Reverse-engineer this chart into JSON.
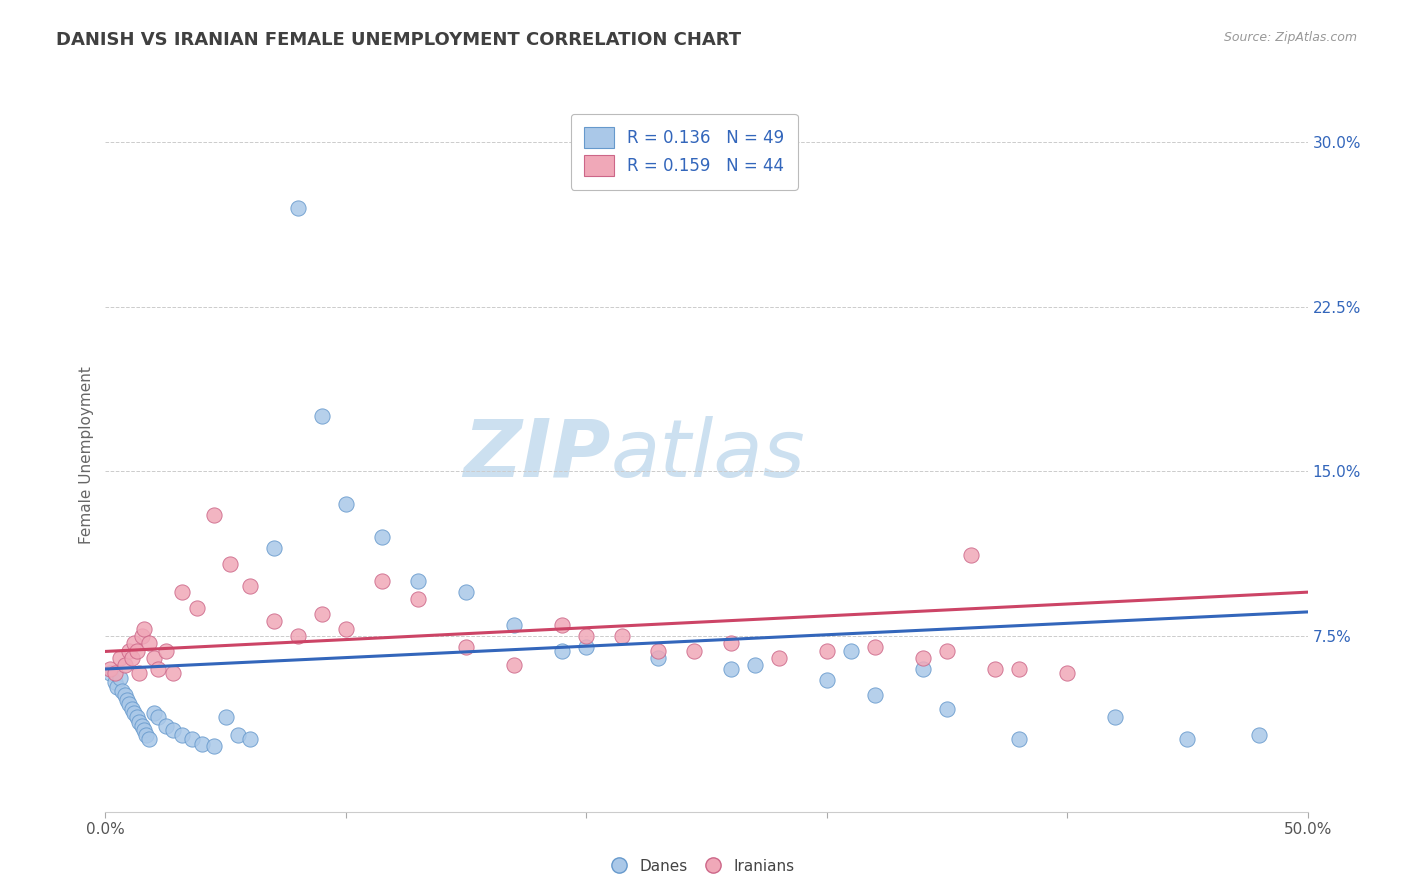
{
  "title": "DANISH VS IRANIAN FEMALE UNEMPLOYMENT CORRELATION CHART",
  "source": "Source: ZipAtlas.com",
  "ylabel": "Female Unemployment",
  "xlim": [
    0.0,
    0.5
  ],
  "ylim": [
    -0.005,
    0.32
  ],
  "xticklabels_left": "0.0%",
  "xticklabels_right": "50.0%",
  "yticks_right": [
    0.075,
    0.15,
    0.225,
    0.3
  ],
  "ytick_labels_right": [
    "7.5%",
    "15.0%",
    "22.5%",
    "30.0%"
  ],
  "danes_R": 0.136,
  "danes_N": 49,
  "iranians_R": 0.159,
  "iranians_N": 44,
  "danes_color": "#aac8e8",
  "iranians_color": "#f0a8b8",
  "danes_edge_color": "#6699cc",
  "iranians_edge_color": "#cc6688",
  "danes_line_color": "#3366bb",
  "iranians_line_color": "#cc4466",
  "danes_trend_start": 0.06,
  "danes_trend_end": 0.086,
  "iranians_trend_start": 0.068,
  "iranians_trend_end": 0.095,
  "background_color": "#ffffff",
  "grid_color": "#cccccc",
  "title_color": "#404040",
  "watermark_zip": "ZIP",
  "watermark_atlas": "atlas",
  "watermark_color": "#cce0f0",
  "legend_text_color": "#3366bb",
  "right_axis_color": "#3366bb",
  "danes_x": [
    0.002,
    0.004,
    0.005,
    0.006,
    0.007,
    0.008,
    0.009,
    0.01,
    0.011,
    0.012,
    0.013,
    0.014,
    0.015,
    0.016,
    0.017,
    0.018,
    0.02,
    0.022,
    0.025,
    0.028,
    0.032,
    0.036,
    0.04,
    0.045,
    0.05,
    0.055,
    0.06,
    0.07,
    0.08,
    0.09,
    0.1,
    0.115,
    0.13,
    0.15,
    0.17,
    0.2,
    0.23,
    0.26,
    0.3,
    0.32,
    0.35,
    0.38,
    0.42,
    0.45,
    0.48,
    0.19,
    0.27,
    0.31,
    0.34
  ],
  "danes_y": [
    0.058,
    0.054,
    0.052,
    0.056,
    0.05,
    0.048,
    0.046,
    0.044,
    0.042,
    0.04,
    0.038,
    0.036,
    0.034,
    0.032,
    0.03,
    0.028,
    0.04,
    0.038,
    0.034,
    0.032,
    0.03,
    0.028,
    0.026,
    0.025,
    0.038,
    0.03,
    0.028,
    0.115,
    0.27,
    0.175,
    0.135,
    0.12,
    0.1,
    0.095,
    0.08,
    0.07,
    0.065,
    0.06,
    0.055,
    0.048,
    0.042,
    0.028,
    0.038,
    0.028,
    0.03,
    0.068,
    0.062,
    0.068,
    0.06
  ],
  "iranians_x": [
    0.002,
    0.004,
    0.006,
    0.008,
    0.01,
    0.011,
    0.012,
    0.013,
    0.014,
    0.015,
    0.016,
    0.018,
    0.02,
    0.022,
    0.025,
    0.028,
    0.032,
    0.038,
    0.045,
    0.052,
    0.06,
    0.07,
    0.08,
    0.09,
    0.1,
    0.115,
    0.13,
    0.15,
    0.17,
    0.2,
    0.23,
    0.26,
    0.3,
    0.34,
    0.38,
    0.19,
    0.215,
    0.245,
    0.28,
    0.32,
    0.35,
    0.37,
    0.4,
    0.36
  ],
  "iranians_y": [
    0.06,
    0.058,
    0.065,
    0.062,
    0.068,
    0.065,
    0.072,
    0.068,
    0.058,
    0.075,
    0.078,
    0.072,
    0.065,
    0.06,
    0.068,
    0.058,
    0.095,
    0.088,
    0.13,
    0.108,
    0.098,
    0.082,
    0.075,
    0.085,
    0.078,
    0.1,
    0.092,
    0.07,
    0.062,
    0.075,
    0.068,
    0.072,
    0.068,
    0.065,
    0.06,
    0.08,
    0.075,
    0.068,
    0.065,
    0.07,
    0.068,
    0.06,
    0.058,
    0.112
  ]
}
